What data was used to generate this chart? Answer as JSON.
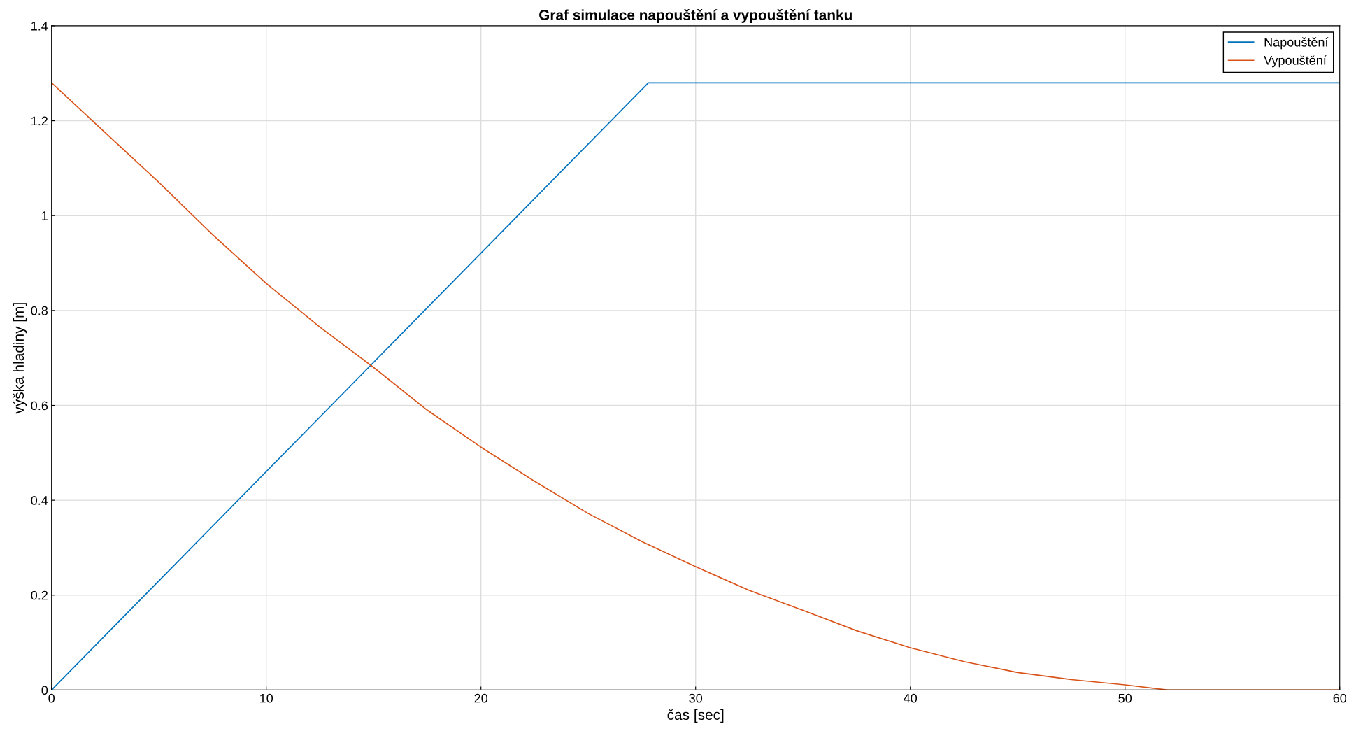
{
  "chart_data": {
    "type": "line",
    "title": "Graf simulace napouštění a vypouštění tanku",
    "xlabel": "čas [sec]",
    "ylabel": "výška hladiny [m]",
    "series": [
      {
        "name": "Napouštění",
        "color": "#0072bd",
        "x": [
          0,
          27.8,
          60
        ],
        "values": [
          0,
          1.28,
          1.28
        ]
      },
      {
        "name": "Vypouštění",
        "color": "#d95319",
        "x": [
          0,
          2.5,
          5,
          7.5,
          10,
          12.5,
          15,
          17.5,
          20,
          22.5,
          25,
          27.5,
          30,
          32.5,
          35,
          37.5,
          40,
          42.5,
          45,
          47.5,
          50,
          52,
          60
        ],
        "values": [
          1.28,
          1.175,
          1.07,
          0.96,
          0.857,
          0.765,
          0.68,
          0.59,
          0.512,
          0.44,
          0.372,
          0.313,
          0.26,
          0.21,
          0.168,
          0.125,
          0.089,
          0.06,
          0.037,
          0.022,
          0.011,
          0,
          0
        ]
      }
    ],
    "xlim": [
      0,
      60
    ],
    "xticks": [
      0,
      10,
      20,
      30,
      40,
      50,
      60
    ],
    "ylim": [
      0,
      1.4
    ],
    "yticks": [
      0,
      0.2,
      0.4,
      0.6,
      0.8,
      1,
      1.2,
      1.4
    ],
    "grid": true,
    "legend": "top right",
    "marker": "none",
    "line_style": "solid"
  }
}
